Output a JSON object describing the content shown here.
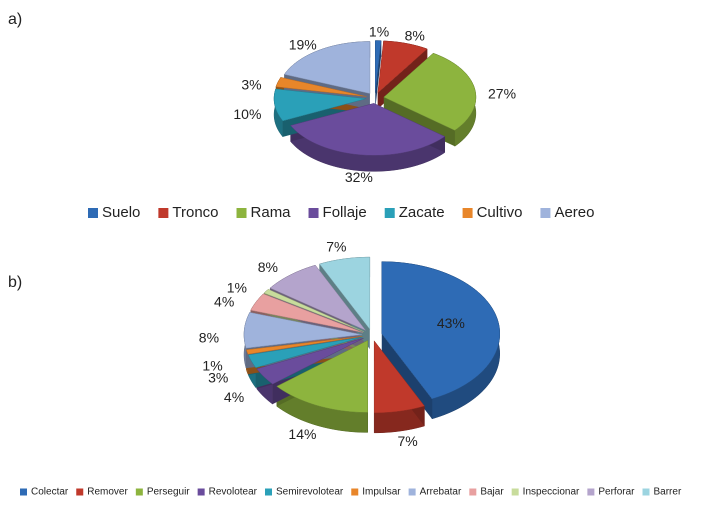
{
  "chart_data": [
    {
      "type": "pie",
      "title": "a)",
      "categories": [
        "Suelo",
        "Tronco",
        "Rama",
        "Follaje",
        "Zacate",
        "Cultivo",
        "Aereo"
      ],
      "values": [
        1,
        8,
        27,
        32,
        10,
        3,
        19
      ],
      "value_labels": [
        "1%",
        "8%",
        "27%",
        "32%",
        "10%",
        "3%",
        "19%"
      ],
      "colors": [
        "#2e6bb5",
        "#c0392b",
        "#8db43e",
        "#6a4c9c",
        "#2aa0b8",
        "#e8862a",
        "#9fb3dc"
      ],
      "legend": "bottom"
    },
    {
      "type": "pie",
      "title": "b)",
      "categories": [
        "Colectar",
        "Remover",
        "Perseguir",
        "Revolotear",
        "Semirevolotear",
        "Impulsar",
        "Arrebatar",
        "Bajar",
        "Inspeccionar",
        "Perforar",
        "Barrer"
      ],
      "values": [
        43,
        7,
        14,
        4,
        3,
        1,
        8,
        4,
        1,
        8,
        7
      ],
      "value_labels": [
        "43%",
        "7%",
        "14%",
        "4%",
        "3%",
        "1%",
        "8%",
        "4%",
        "1%",
        "8%",
        "7%"
      ],
      "colors": [
        "#2e6bb5",
        "#c0392b",
        "#8db43e",
        "#6a4c9c",
        "#2aa0b8",
        "#e8862a",
        "#9fb3dc",
        "#e8a0a0",
        "#c8dc9c",
        "#b4a4cc",
        "#9cd4e0"
      ],
      "legend": "bottom"
    }
  ]
}
